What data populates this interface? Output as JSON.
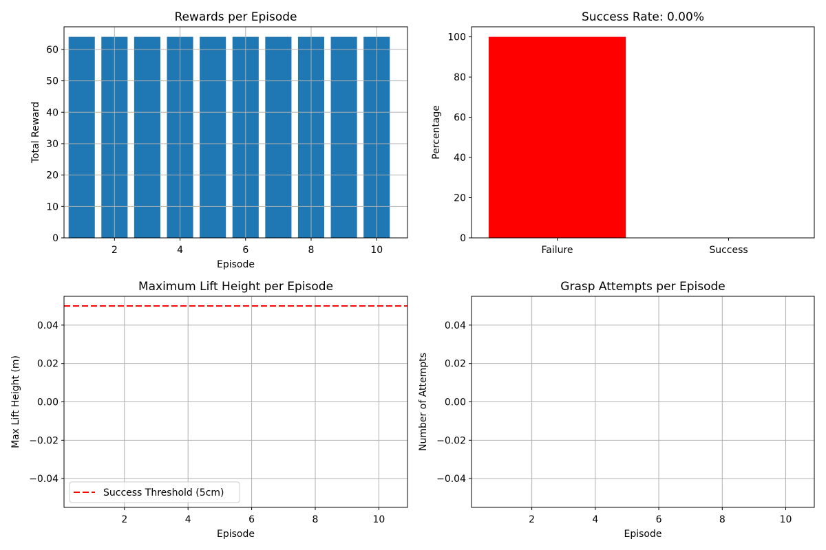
{
  "colors": {
    "bar": "#1f77b4",
    "failure": "#ff0000",
    "threshold": "#ff0000",
    "grid": "#b0b0b0",
    "axes": "#000000"
  },
  "chart_data": [
    {
      "id": "rewards",
      "type": "bar",
      "title": "Rewards per Episode",
      "xlabel": "Episode",
      "ylabel": "Total Reward",
      "x": [
        1,
        2,
        3,
        4,
        5,
        6,
        7,
        8,
        9,
        10
      ],
      "values": [
        64,
        64,
        64,
        64,
        64,
        64,
        64,
        64,
        64,
        64
      ],
      "xlim": [
        0.46,
        10.94
      ],
      "ylim": [
        0,
        67.2
      ],
      "xticks": [
        2,
        4,
        6,
        8,
        10
      ],
      "yticks": [
        0,
        10,
        20,
        30,
        40,
        50,
        60
      ],
      "grid": true
    },
    {
      "id": "success",
      "type": "bar",
      "title": "Success Rate: 0.00%",
      "xlabel": "",
      "ylabel": "Percentage",
      "categories": [
        "Failure",
        "Success"
      ],
      "values": [
        100,
        0
      ],
      "bar_colors": [
        "#ff0000",
        "#008000"
      ],
      "ylim": [
        0,
        105
      ],
      "yticks": [
        0,
        20,
        40,
        60,
        80,
        100
      ],
      "grid": false
    },
    {
      "id": "lift",
      "type": "line",
      "title": "Maximum Lift Height per Episode",
      "xlabel": "Episode",
      "ylabel": "Max Lift Height (m)",
      "series": [],
      "threshold": {
        "value": 0.05,
        "label": "Success Threshold (5cm)",
        "style": "dashed"
      },
      "xlim": [
        0.1,
        10.9
      ],
      "ylim": [
        -0.055,
        0.055
      ],
      "xticks": [
        2,
        4,
        6,
        8,
        10
      ],
      "yticks": [
        -0.04,
        -0.02,
        0.0,
        0.02,
        0.04
      ],
      "ytick_labels": [
        "−0.04",
        "−0.02",
        "0.00",
        "0.02",
        "0.04"
      ],
      "grid": true,
      "legend": "lower-left"
    },
    {
      "id": "grasp",
      "type": "line",
      "title": "Grasp Attempts per Episode",
      "xlabel": "Episode",
      "ylabel": "Number of Attempts",
      "series": [],
      "xlim": [
        0.1,
        10.9
      ],
      "ylim": [
        -0.055,
        0.055
      ],
      "xticks": [
        2,
        4,
        6,
        8,
        10
      ],
      "yticks": [
        -0.04,
        -0.02,
        0.0,
        0.02,
        0.04
      ],
      "ytick_labels": [
        "−0.04",
        "−0.02",
        "0.00",
        "0.02",
        "0.04"
      ],
      "grid": true
    }
  ]
}
